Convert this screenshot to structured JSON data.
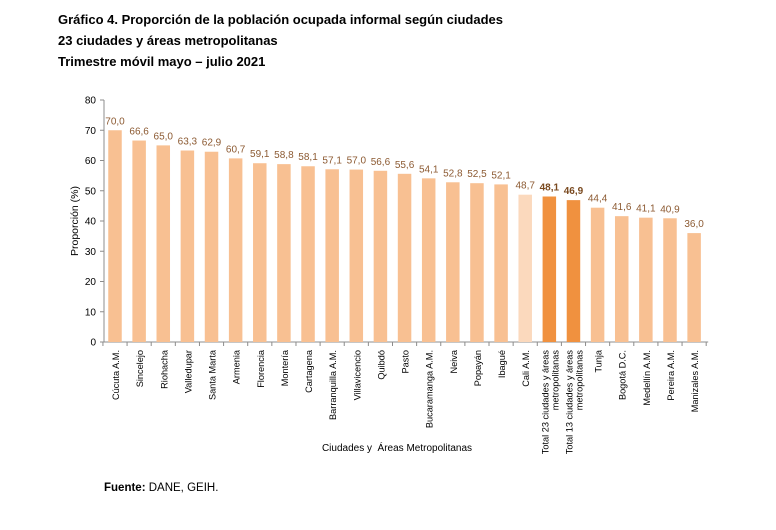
{
  "titles": {
    "line1": "Gráfico 4. Proporción de la población ocupada informal según ciudades",
    "line2": "23 ciudades y áreas metropolitanas",
    "line3": "Trimestre móvil mayo – julio 2021"
  },
  "source": {
    "label": "Fuente:",
    "text": "DANE, GEIH."
  },
  "colors": {
    "default": "#F8C092",
    "cali": "#FBD9BD",
    "aggregate": "#F0913F",
    "label_default": "#8C5A32",
    "label_aggregate": "#7A4A20"
  },
  "chart_data": {
    "type": "bar",
    "xlabel": "Ciudades y  Áreas Metropolitanas",
    "ylabel": "Proporción (%)",
    "ylim": [
      0,
      80
    ],
    "yticks": [
      0,
      10,
      20,
      30,
      40,
      50,
      60,
      70,
      80
    ],
    "grid": false,
    "categories": [
      "Cúcuta A.M.",
      "Sincelejo",
      "Riohacha",
      "Valledupar",
      "Santa Marta",
      "Armenia",
      "Florencia",
      "Montería",
      "Cartagena",
      "Barranquilla A.M.",
      "Villavicencio",
      "Quibdó",
      "Pasto",
      "Bucaramanga A.M.",
      "Neiva",
      "Popayán",
      "Ibagué",
      "Cali A.M.",
      "Total 23 ciudades y áreas metropolitanas",
      "Total 13 ciudades y áreas metropolitanas",
      "Tunja",
      "Bogotá D.C.",
      "Medellín A.M.",
      "Pereira A.M.",
      "Manizales A.M."
    ],
    "category_lines": [
      [
        "Cúcuta A.M."
      ],
      [
        "Sincelejo"
      ],
      [
        "Riohacha"
      ],
      [
        "Valledupar"
      ],
      [
        "Santa Marta"
      ],
      [
        "Armenia"
      ],
      [
        "Florencia"
      ],
      [
        "Montería"
      ],
      [
        "Cartagena"
      ],
      [
        "Barranquilla A.M."
      ],
      [
        "Villavicencio"
      ],
      [
        "Quibdó"
      ],
      [
        "Pasto"
      ],
      [
        "Bucaramanga A.M."
      ],
      [
        "Neiva"
      ],
      [
        "Popayán"
      ],
      [
        "Ibagué"
      ],
      [
        "Cali A.M."
      ],
      [
        "Total 23 ciudades y áreas",
        "metropolitanas"
      ],
      [
        "Total 13 ciudades y áreas",
        "metropolitanas"
      ],
      [
        "Tunja"
      ],
      [
        "Bogotá D.C."
      ],
      [
        "Medellín A.M."
      ],
      [
        "Pereira A.M."
      ],
      [
        "Manizales A.M."
      ]
    ],
    "values": [
      70.0,
      66.6,
      65.0,
      63.3,
      62.9,
      60.7,
      59.1,
      58.8,
      58.1,
      57.1,
      57.0,
      56.6,
      55.6,
      54.1,
      52.8,
      52.5,
      52.1,
      48.7,
      48.1,
      46.9,
      44.4,
      41.6,
      41.1,
      40.9,
      36.0
    ],
    "labels": [
      "70,0",
      "66,6",
      "65,0",
      "63,3",
      "62,9",
      "60,7",
      "59,1",
      "58,8",
      "58,1",
      "57,1",
      "57,0",
      "56,6",
      "55,6",
      "54,1",
      "52,8",
      "52,5",
      "52,1",
      "48,7",
      "48,1",
      "46,9",
      "44,4",
      "41,6",
      "41,1",
      "40,9",
      "36,0"
    ],
    "bar_style": [
      "default",
      "default",
      "default",
      "default",
      "default",
      "default",
      "default",
      "default",
      "default",
      "default",
      "default",
      "default",
      "default",
      "default",
      "default",
      "default",
      "default",
      "cali",
      "aggregate",
      "aggregate",
      "default",
      "default",
      "default",
      "default",
      "default"
    ]
  }
}
